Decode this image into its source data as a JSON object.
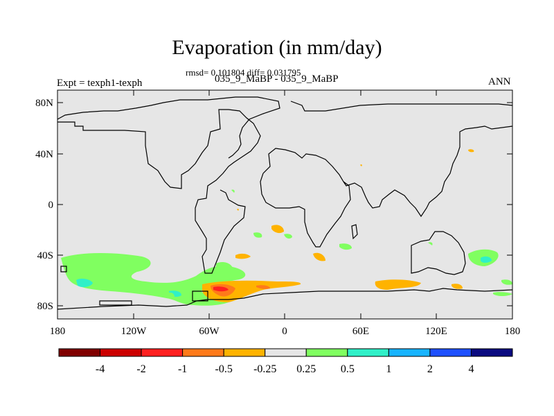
{
  "title": "Evaporation (in mm/day)",
  "stats_line": "rmsd= 0.101804 diff= 0.031795",
  "runs_line": "035_9_MaBP - 035_9_MaBP",
  "left_label": "Expt = texph1-texph",
  "right_label": "ANN",
  "map": {
    "background_color": "#e6e6e6",
    "lat_ticks": [
      "80N",
      "40N",
      "0",
      "40S",
      "80S"
    ],
    "lon_ticks": [
      "180",
      "120W",
      "60W",
      "0",
      "60E",
      "120E",
      "180"
    ]
  },
  "colorbar": {
    "colors": [
      "#800000",
      "#cc0000",
      "#ff2020",
      "#ff7a1a",
      "#ffb300",
      "#e6e6e6",
      "#80ff60",
      "#30f0c8",
      "#18b4ff",
      "#1e50ff",
      "#0a0a80"
    ],
    "labels": [
      "-4",
      "-2",
      "-1",
      "-0.5",
      "-0.25",
      "0.25",
      "0.5",
      "1",
      "2",
      "4"
    ]
  }
}
